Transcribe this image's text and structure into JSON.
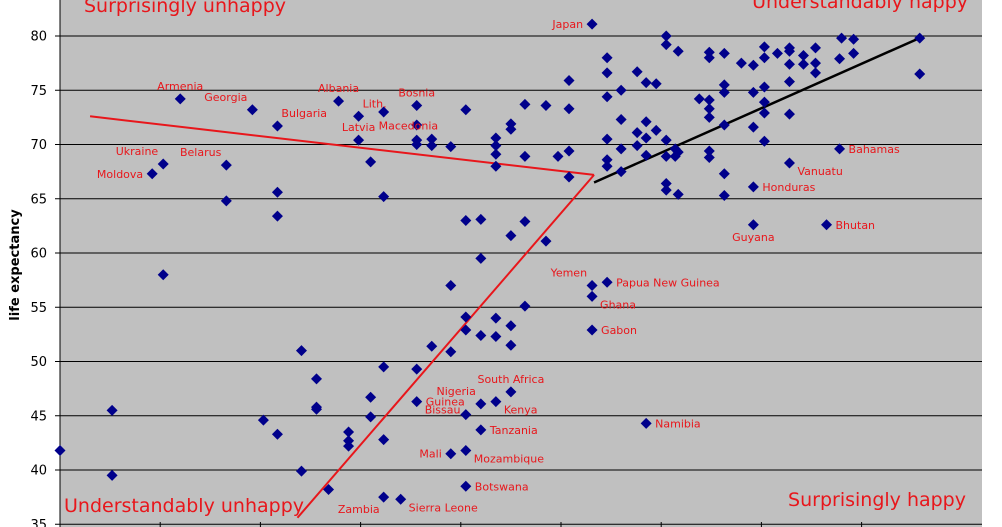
{
  "chart_data": {
    "type": "scatter",
    "ylabel": "life expectancy",
    "xlabel": "",
    "ylim": [
      35,
      82
    ],
    "yticks": [
      35,
      40,
      45,
      50,
      55,
      60,
      65,
      70,
      75,
      80
    ],
    "xlim": [
      0,
      100
    ],
    "grid": "horizontal",
    "background": "#c0c0c0",
    "colors": {
      "points": "#00008b",
      "labels": "#e8161b",
      "trend_left": "#e8161b",
      "trend_right": "#000000"
    },
    "corner_labels": {
      "top_left": "Surprisingly unhappy",
      "top_right": "Understandably happy",
      "bottom_left": "Understandably unhappy",
      "bottom_right": "Surprisingly happy"
    },
    "points": [
      [
        0,
        41.8
      ],
      [
        5.2,
        45.5
      ],
      [
        5.2,
        39.5
      ],
      [
        9.2,
        67.3
      ],
      [
        10.3,
        68.2
      ],
      [
        10.3,
        58
      ],
      [
        12,
        74.2
      ],
      [
        16.6,
        68.1
      ],
      [
        16.6,
        64.8
      ],
      [
        19.2,
        73.2
      ],
      [
        20.3,
        44.6
      ],
      [
        21.7,
        71.7
      ],
      [
        21.7,
        65.6
      ],
      [
        21.7,
        63.4
      ],
      [
        21.7,
        43.3
      ],
      [
        24.1,
        51
      ],
      [
        24.1,
        39.9
      ],
      [
        25.6,
        48.4
      ],
      [
        25.6,
        45.8
      ],
      [
        25.6,
        45.6
      ],
      [
        26.8,
        38.2
      ],
      [
        27.8,
        74
      ],
      [
        28.8,
        43.5
      ],
      [
        28.8,
        42.7
      ],
      [
        28.8,
        42.2
      ],
      [
        29.8,
        72.6
      ],
      [
        29.8,
        70.4
      ],
      [
        31,
        68.4
      ],
      [
        31,
        46.7
      ],
      [
        31,
        44.9
      ],
      [
        32.3,
        73
      ],
      [
        32.3,
        65.2
      ],
      [
        32.3,
        49.5
      ],
      [
        32.3,
        42.8
      ],
      [
        32.3,
        37.5
      ],
      [
        34,
        37.3
      ],
      [
        35.6,
        73.6
      ],
      [
        35.6,
        71.8
      ],
      [
        35.6,
        70.4
      ],
      [
        35.6,
        70
      ],
      [
        35.6,
        49.3
      ],
      [
        35.6,
        46.3
      ],
      [
        37.1,
        70.5
      ],
      [
        37.1,
        69.9
      ],
      [
        37.1,
        51.4
      ],
      [
        39,
        69.8
      ],
      [
        39,
        57
      ],
      [
        39,
        50.9
      ],
      [
        39,
        41.5
      ],
      [
        40.5,
        73.2
      ],
      [
        40.5,
        63
      ],
      [
        40.5,
        54.1
      ],
      [
        40.5,
        52.9
      ],
      [
        40.5,
        45.1
      ],
      [
        40.5,
        41.8
      ],
      [
        40.5,
        38.5
      ],
      [
        42,
        63.1
      ],
      [
        42,
        59.5
      ],
      [
        42,
        52.4
      ],
      [
        42,
        46.1
      ],
      [
        42,
        43.7
      ],
      [
        43.5,
        70.6
      ],
      [
        43.5,
        69.9
      ],
      [
        43.5,
        69.1
      ],
      [
        43.5,
        68
      ],
      [
        43.5,
        54
      ],
      [
        43.5,
        52.3
      ],
      [
        43.5,
        46.3
      ],
      [
        45,
        71.9
      ],
      [
        45,
        71.4
      ],
      [
        45,
        61.6
      ],
      [
        45,
        53.3
      ],
      [
        45,
        51.5
      ],
      [
        45,
        47.2
      ],
      [
        46.4,
        73.7
      ],
      [
        46.4,
        68.9
      ],
      [
        46.4,
        62.9
      ],
      [
        46.4,
        55.1
      ],
      [
        48.5,
        73.6
      ],
      [
        48.5,
        61.1
      ],
      [
        49.7,
        68.9
      ],
      [
        50.8,
        75.9
      ],
      [
        50.8,
        73.3
      ],
      [
        50.8,
        69.4
      ],
      [
        50.8,
        67
      ],
      [
        53.1,
        81.1
      ],
      [
        53.1,
        57
      ],
      [
        53.1,
        56
      ],
      [
        53.1,
        52.9
      ],
      [
        54.6,
        78
      ],
      [
        54.6,
        76.6
      ],
      [
        54.6,
        74.4
      ],
      [
        54.6,
        70.5
      ],
      [
        54.6,
        68.6
      ],
      [
        54.6,
        68
      ],
      [
        54.6,
        57.3
      ],
      [
        56,
        75
      ],
      [
        56,
        72.3
      ],
      [
        56,
        69.6
      ],
      [
        56,
        67.5
      ],
      [
        57.6,
        76.7
      ],
      [
        57.6,
        71.1
      ],
      [
        57.6,
        69.9
      ],
      [
        58.5,
        75.7
      ],
      [
        58.5,
        72.1
      ],
      [
        58.5,
        70.6
      ],
      [
        58.5,
        69
      ],
      [
        58.5,
        44.3
      ],
      [
        59.5,
        75.6
      ],
      [
        59.5,
        71.3
      ],
      [
        60.5,
        80
      ],
      [
        60.5,
        79.2
      ],
      [
        60.5,
        70.4
      ],
      [
        60.5,
        68.9
      ],
      [
        60.5,
        66.4
      ],
      [
        60.5,
        65.8
      ],
      [
        61.4,
        69.6
      ],
      [
        61.4,
        68.9
      ],
      [
        61.7,
        78.6
      ],
      [
        61.7,
        69.3
      ],
      [
        61.7,
        65.4
      ],
      [
        63.8,
        74.2
      ],
      [
        64.8,
        78.5
      ],
      [
        64.8,
        78
      ],
      [
        64.8,
        74.1
      ],
      [
        64.8,
        73.3
      ],
      [
        64.8,
        72.5
      ],
      [
        64.8,
        69.4
      ],
      [
        64.8,
        68.8
      ],
      [
        66.3,
        78.4
      ],
      [
        66.3,
        75.5
      ],
      [
        66.3,
        74.8
      ],
      [
        66.3,
        71.8
      ],
      [
        66.3,
        67.3
      ],
      [
        66.3,
        65.3
      ],
      [
        68,
        77.5
      ],
      [
        69.2,
        77.3
      ],
      [
        69.2,
        74.8
      ],
      [
        69.2,
        71.6
      ],
      [
        69.2,
        66.1
      ],
      [
        69.2,
        62.6
      ],
      [
        70.3,
        79
      ],
      [
        70.3,
        78
      ],
      [
        70.3,
        75.3
      ],
      [
        70.3,
        73.9
      ],
      [
        70.3,
        72.9
      ],
      [
        70.3,
        70.3
      ],
      [
        71.6,
        78.4
      ],
      [
        72.8,
        78.9
      ],
      [
        72.8,
        78.6
      ],
      [
        72.8,
        77.4
      ],
      [
        72.8,
        75.8
      ],
      [
        72.8,
        72.8
      ],
      [
        72.8,
        68.3
      ],
      [
        74.2,
        78.2
      ],
      [
        74.2,
        77.4
      ],
      [
        75.4,
        78.9
      ],
      [
        75.4,
        77.5
      ],
      [
        75.4,
        76.6
      ],
      [
        76.5,
        62.6
      ],
      [
        77.8,
        77.9
      ],
      [
        77.8,
        69.6
      ],
      [
        78,
        79.8
      ],
      [
        79.2,
        79.7
      ],
      [
        79.2,
        78.4
      ],
      [
        85.8,
        79.8
      ],
      [
        85.8,
        76.5
      ]
    ],
    "annotations": [
      {
        "text": "Japan",
        "x": 53.1,
        "y": 81.1,
        "side": "left"
      },
      {
        "text": "Armenia",
        "x": 12,
        "y": 74.2,
        "side": "above"
      },
      {
        "text": "Albania",
        "x": 27.8,
        "y": 74,
        "side": "above"
      },
      {
        "text": "Bosnia",
        "x": 35.6,
        "y": 73.6,
        "side": "above"
      },
      {
        "text": "Georgia",
        "x": 19.2,
        "y": 73.2,
        "side": "above-left"
      },
      {
        "text": "Lith.",
        "x": 29.8,
        "y": 72.6,
        "side": "above-right"
      },
      {
        "text": "Bulgaria",
        "x": 21.7,
        "y": 71.7,
        "side": "above-right"
      },
      {
        "text": "Macedonia",
        "x": 31,
        "y": 72.5,
        "side": "below-right"
      },
      {
        "text": "Latvia",
        "x": 29.8,
        "y": 70.4,
        "side": "above"
      },
      {
        "text": "Ukraine",
        "x": 10.3,
        "y": 68.2,
        "side": "above-left"
      },
      {
        "text": "Belarus",
        "x": 16.6,
        "y": 68.1,
        "side": "above-left"
      },
      {
        "text": "Moldova",
        "x": 9.2,
        "y": 67.3,
        "side": "left"
      },
      {
        "text": "Bahamas",
        "x": 77.8,
        "y": 69.6,
        "side": "right"
      },
      {
        "text": "Vanuatu",
        "x": 72.8,
        "y": 68.3,
        "side": "below-right"
      },
      {
        "text": "Honduras",
        "x": 69.2,
        "y": 66.1,
        "side": "right"
      },
      {
        "text": "Bhutan",
        "x": 76.5,
        "y": 62.6,
        "side": "right"
      },
      {
        "text": "Guyana",
        "x": 69.2,
        "y": 62.6,
        "side": "below"
      },
      {
        "text": "Yemen",
        "x": 53.1,
        "y": 57,
        "side": "above-left"
      },
      {
        "text": "Papua New Guinea",
        "x": 54.6,
        "y": 57.3,
        "side": "right"
      },
      {
        "text": "Ghana",
        "x": 53.1,
        "y": 56,
        "side": "below-right"
      },
      {
        "text": "Gabon",
        "x": 53.1,
        "y": 52.9,
        "side": "right"
      },
      {
        "text": "South Africa",
        "x": 45,
        "y": 47.2,
        "side": "above"
      },
      {
        "text": "Nigeria",
        "x": 42,
        "y": 46.1,
        "side": "above-left"
      },
      {
        "text": "Kenya",
        "x": 43.5,
        "y": 46.3,
        "side": "below-right"
      },
      {
        "text": "Guinea",
        "x": 35.6,
        "y": 46.3,
        "side": "right"
      },
      {
        "text": "Bissau",
        "x": 35.6,
        "y": 46.3,
        "side": "below-right"
      },
      {
        "text": "Namibia",
        "x": 58.5,
        "y": 44.3,
        "side": "right"
      },
      {
        "text": "Tanzania",
        "x": 42,
        "y": 43.7,
        "side": "right"
      },
      {
        "text": "Mozambique",
        "x": 40.5,
        "y": 41.8,
        "side": "below-right"
      },
      {
        "text": "Mali",
        "x": 39,
        "y": 41.5,
        "side": "left"
      },
      {
        "text": "Botswana",
        "x": 40.5,
        "y": 38.5,
        "side": "right"
      },
      {
        "text": "Zambia",
        "x": 32.3,
        "y": 37.5,
        "side": "below-left"
      },
      {
        "text": "Sierra Leone",
        "x": 34,
        "y": 37.3,
        "side": "below-right"
      }
    ],
    "trend_lines": [
      {
        "name": "",
        "color": "#e8161b",
        "x1": 3,
        "y1": 72.6,
        "x2": 53.3,
        "y2": 67.2
      },
      {
        "name": "",
        "color": "#e8161b",
        "x1": 23.7,
        "y1": 35.6,
        "x2": 53.3,
        "y2": 67.2
      },
      {
        "name": "",
        "color": "#000000",
        "x1": 53.3,
        "y1": 66.5,
        "x2": 86,
        "y2": 79.9
      }
    ]
  }
}
